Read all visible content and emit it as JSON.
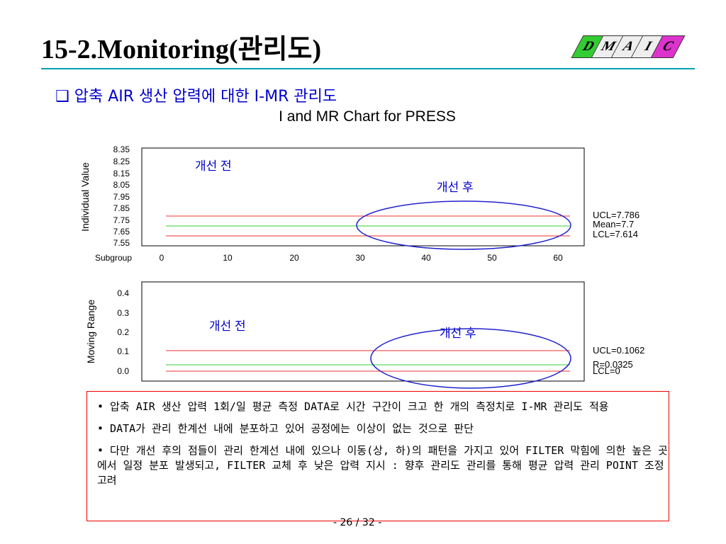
{
  "title": "15-2.Monitoring(관리도)",
  "badge": [
    "D",
    "M",
    "A",
    "I",
    "C"
  ],
  "subtitle": "❑ 압축 AIR 생산 압력에 대한 I-MR 관리도",
  "chart_title": "I and MR Chart for PRESS",
  "labels": {
    "before": "개선 전",
    "after": "개선 후"
  },
  "bullets": [
    "• 압축 AIR 생산 압력 1회/일 평균 측정 DATA로 시간 구간이 크고 한 개의 측정치로 I-MR 관리도 적용",
    "• DATA가 관리 한계선 내에 분포하고 있어 공정에는 이상이 없는 것으로 판단",
    "• 다만 개선 후의 점들이 관리 한계선 내에 있으나 이동(상, 하)의 패턴을 가지고 있어 FILTER 막힘에 의한 높은 곳에서 일정 분포 발생되고, FILTER 교체 후 낮은 압력 지시 : 향후 관리도 관리를 통해 평균 압력 관리 POINT 조정 고려"
  ],
  "page": "- 26 / 32 -",
  "chart_data": [
    {
      "type": "line",
      "ylabel": "Individual Value",
      "xlabel": "Subgroup",
      "yticks": [
        "8.35",
        "8.25",
        "8.15",
        "8.05",
        "7.95",
        "7.85",
        "7.75",
        "7.65",
        "7.55"
      ],
      "xticks": [
        "0",
        "10",
        "20",
        "30",
        "40",
        "50",
        "60"
      ],
      "ucl": "UCL=7.786",
      "mean": "Mean=7.7",
      "lcl": "LCL=7.614"
    },
    {
      "type": "line",
      "ylabel": "Moving Range",
      "yticks": [
        "0.4",
        "0.3",
        "0.2",
        "0.1",
        "0.0"
      ],
      "ucl": "UCL=0.1062",
      "mean": "R=0.0325",
      "lcl": "LCL=0"
    }
  ]
}
